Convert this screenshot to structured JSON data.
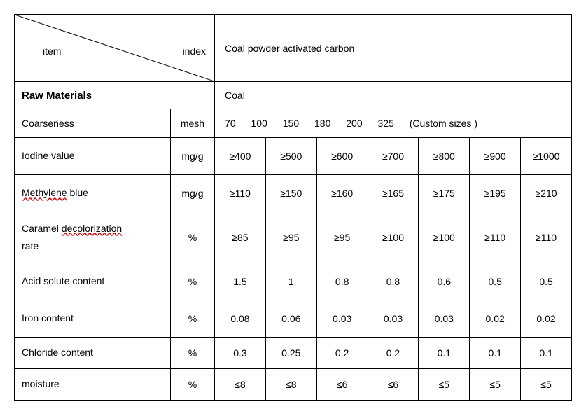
{
  "header": {
    "item_label": "item",
    "index_label": "index",
    "title": "Coal powder activated carbon"
  },
  "raw_materials": {
    "label": "Raw Materials",
    "value": "Coal"
  },
  "coarseness": {
    "label": "Coarseness",
    "unit": "mesh",
    "values": [
      "70",
      "100",
      "150",
      "180",
      "200",
      "325"
    ],
    "note": "(Custom sizes )"
  },
  "rows": [
    {
      "label_plain": "Iodine value",
      "label_redline_part": "",
      "label_suffix": "",
      "unit": "mg/g",
      "values": [
        "≥400",
        "≥500",
        "≥600",
        "≥700",
        "≥800",
        "≥900",
        "≥1000"
      ],
      "css_height": "data-row"
    },
    {
      "label_plain": "",
      "label_redline_part": "Methylene",
      "label_suffix": " blue",
      "unit": "mg/g",
      "values": [
        "≥110",
        "≥150",
        "≥160",
        "≥165",
        "≥175",
        "≥195",
        "≥210"
      ],
      "css_height": "data-row"
    },
    {
      "label_plain": "Caramel ",
      "label_redline_part": "decolorization",
      "label_suffix": "",
      "label_line2": "rate",
      "unit": "%",
      "values": [
        "≥85",
        "≥95",
        "≥95",
        "≥100",
        "≥100",
        "≥110",
        "≥110"
      ],
      "css_height": "tall-row"
    },
    {
      "label_plain": "Acid solute content",
      "label_redline_part": "",
      "label_suffix": "",
      "unit": "%",
      "values": [
        "1.5",
        "1",
        "0.8",
        "0.8",
        "0.6",
        "0.5",
        "0.5"
      ],
      "css_height": "data-row"
    },
    {
      "label_plain": "Iron content",
      "label_redline_part": "",
      "label_suffix": "",
      "unit": "%",
      "values": [
        "0.08",
        "0.06",
        "0.03",
        "0.03",
        "0.03",
        "0.02",
        "0.02"
      ],
      "css_height": "data-row"
    },
    {
      "label_plain": "Chloride content",
      "label_redline_part": "",
      "label_suffix": "",
      "unit": "%",
      "values": [
        "0.3",
        "0.25",
        "0.2",
        "0.2",
        "0.1",
        "0.1",
        "0.1"
      ],
      "css_height": "low-row"
    },
    {
      "label_plain": "moisture",
      "label_redline_part": "",
      "label_suffix": "",
      "unit": "%",
      "values": [
        "≤8",
        "≤8",
        "≤6",
        "≤6",
        "≤5",
        "≤5",
        "≤5"
      ],
      "css_height": "low-row"
    }
  ],
  "style": {
    "font_family": "Arial, sans-serif",
    "base_fontsize": 14,
    "border_color": "#000000",
    "background_color": "#ffffff",
    "redline_color": "#d00"
  }
}
